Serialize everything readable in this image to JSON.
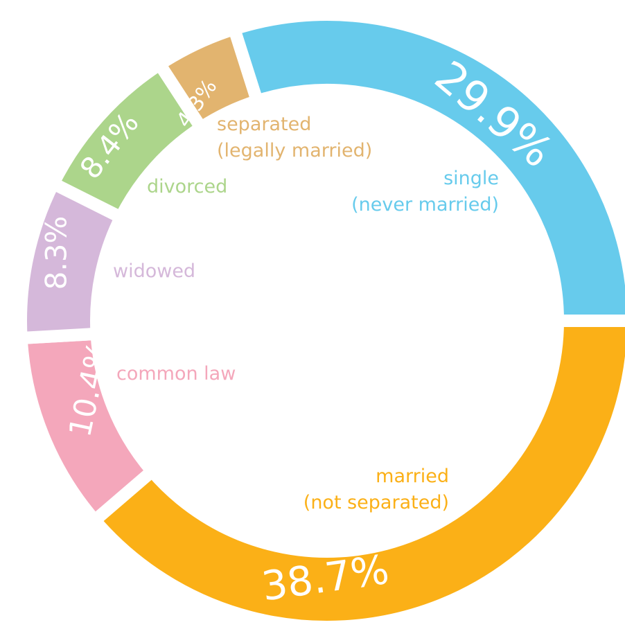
{
  "chart_data": {
    "type": "donut",
    "categories": [
      [
        "married",
        "(not separated)"
      ],
      [
        "common law"
      ],
      [
        "widowed"
      ],
      [
        "divorced"
      ],
      [
        "separated",
        "(legally married)"
      ],
      [
        "single",
        "(never married)"
      ]
    ],
    "values": [
      38.7,
      10.4,
      8.3,
      8.4,
      4.3,
      29.9
    ],
    "value_labels": [
      "38.7%",
      "10.4%",
      "8.3%",
      "8.4%",
      "4.3%",
      "29.9%"
    ],
    "colors": [
      "#fbb017",
      "#f4a7bb",
      "#d5b8da",
      "#acd58b",
      "#e2b46f",
      "#67cbec"
    ]
  }
}
